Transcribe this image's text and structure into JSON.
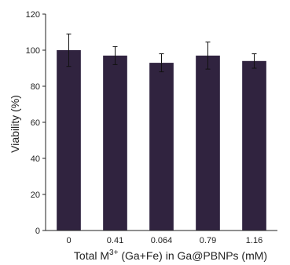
{
  "chart_data": {
    "type": "bar",
    "categories": [
      "0",
      "0.41",
      "0.064",
      "0.79",
      "1.16"
    ],
    "values": [
      100,
      97,
      93,
      97,
      94
    ],
    "errors": [
      9,
      5,
      5,
      7.5,
      4
    ],
    "xlabel_parts": {
      "before": "Total M",
      "sup": "3+",
      "after": " (Ga+Fe) in Ga@PBNPs (mM)"
    },
    "ylabel": "Viability (%)",
    "ylim": [
      0,
      120
    ],
    "yticks": [
      0,
      20,
      40,
      60,
      80,
      100,
      120
    ],
    "bar_color": "#30233f",
    "grid": false,
    "legend": "none"
  }
}
